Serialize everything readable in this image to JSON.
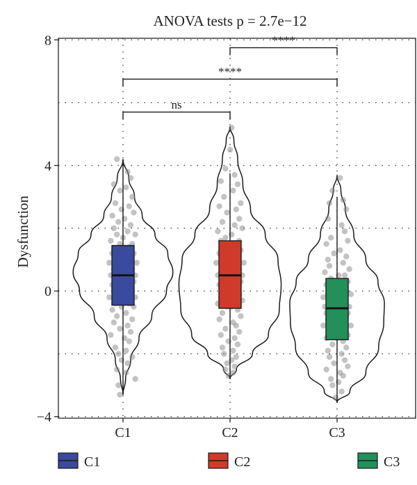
{
  "chart_data": {
    "type": "violin",
    "title": "ANOVA tests p = 2.7e−12",
    "xlabel": "",
    "ylabel": "Dysfunction",
    "categories": [
      "C1",
      "C2",
      "C3"
    ],
    "ylim": [
      -4.05,
      8.05
    ],
    "yticks": [
      -4,
      0,
      4,
      8
    ],
    "ytick_labels": [
      "−4",
      "0",
      "4",
      "8"
    ],
    "grid": "dotted",
    "legend_position": "bottom",
    "series": [
      {
        "name": "C1",
        "color": "#3A4A9E",
        "q1": -0.45,
        "median": 0.5,
        "q3": 1.45,
        "whisker_low": -3.3,
        "whisker_high": 4.2
      },
      {
        "name": "C2",
        "color": "#D03A2A",
        "q1": -0.55,
        "median": 0.5,
        "q3": 1.6,
        "whisker_low": -2.8,
        "whisker_high": 3.75
      },
      {
        "name": "C3",
        "color": "#23905A",
        "q1": -1.55,
        "median": -0.55,
        "q3": 0.4,
        "whisker_low": -3.5,
        "whisker_high": 3.0
      }
    ],
    "violins": [
      {
        "category": "C1",
        "density": [
          [
            -3.3,
            0
          ],
          [
            -2.8,
            0.04
          ],
          [
            -2.2,
            0.12
          ],
          [
            -1.5,
            0.25
          ],
          [
            -0.8,
            0.45
          ],
          [
            0,
            0.68
          ],
          [
            0.6,
            0.78
          ],
          [
            1.2,
            0.7
          ],
          [
            1.8,
            0.5
          ],
          [
            2.4,
            0.3
          ],
          [
            3.0,
            0.18
          ],
          [
            3.6,
            0.09
          ],
          [
            4.2,
            0
          ]
        ]
      },
      {
        "category": "C2",
        "density": [
          [
            -2.8,
            0
          ],
          [
            -2.5,
            0.1
          ],
          [
            -2.0,
            0.35
          ],
          [
            -1.4,
            0.6
          ],
          [
            -0.6,
            0.77
          ],
          [
            0.2,
            0.8
          ],
          [
            1.0,
            0.75
          ],
          [
            1.8,
            0.55
          ],
          [
            2.6,
            0.32
          ],
          [
            3.4,
            0.2
          ],
          [
            4.2,
            0.12
          ],
          [
            4.8,
            0.06
          ],
          [
            5.25,
            0
          ]
        ]
      },
      {
        "category": "C3",
        "density": [
          [
            -3.55,
            0
          ],
          [
            -3.2,
            0.2
          ],
          [
            -2.6,
            0.45
          ],
          [
            -1.8,
            0.65
          ],
          [
            -1.0,
            0.73
          ],
          [
            -0.4,
            0.74
          ],
          [
            0.3,
            0.64
          ],
          [
            1.0,
            0.45
          ],
          [
            1.8,
            0.26
          ],
          [
            2.6,
            0.13
          ],
          [
            3.2,
            0.06
          ],
          [
            3.7,
            0
          ]
        ]
      }
    ],
    "comparisons": [
      {
        "group1": "C1",
        "group2": "C2",
        "y": 5.7,
        "label": "ns"
      },
      {
        "group1": "C1",
        "group2": "C3",
        "y": 6.75,
        "label": "****"
      },
      {
        "group1": "C2",
        "group2": "C3",
        "y": 7.75,
        "label": "****"
      }
    ],
    "points": [
      {
        "category": "C1",
        "y": [
          4.2,
          3.8,
          3.6,
          3.4,
          3.3,
          3.2,
          3.0,
          2.8,
          2.7,
          2.6,
          2.5,
          2.4,
          2.3,
          2.2,
          2.1,
          2.0,
          1.9,
          1.8,
          1.8,
          1.7,
          1.6,
          1.5,
          1.5,
          1.4,
          1.3,
          1.2,
          1.2,
          1.1,
          1.0,
          1.0,
          0.9,
          0.9,
          0.8,
          0.8,
          0.7,
          0.7,
          0.6,
          0.6,
          0.5,
          0.5,
          0.5,
          0.4,
          0.4,
          0.3,
          0.3,
          0.2,
          0.2,
          0.1,
          0.1,
          0.0,
          0.0,
          -0.1,
          -0.1,
          -0.2,
          -0.2,
          -0.3,
          -0.3,
          -0.4,
          -0.4,
          -0.5,
          -0.5,
          -0.6,
          -0.7,
          -0.8,
          -0.9,
          -1.0,
          -1.1,
          -1.2,
          -1.3,
          -1.4,
          -1.5,
          -1.6,
          -1.8,
          -1.9,
          -2.0,
          -2.1,
          -2.2,
          -2.3,
          -2.5,
          -2.6,
          -2.8,
          -3.0,
          -3.3
        ],
        "dx": [
          -0.4,
          0.3,
          0.5,
          -0.6,
          0.2,
          -0.2,
          0.6,
          -0.5,
          0.4,
          -0.1,
          0.7,
          -0.7,
          0.1,
          -0.3,
          0.5,
          -0.6,
          0.3,
          0.8,
          -0.4,
          0.0,
          -0.8,
          0.6,
          -0.2,
          0.4,
          -0.5,
          0.7,
          -0.7,
          0.2,
          -0.3,
          0.5,
          0.9,
          -0.9,
          0.1,
          -0.4,
          0.6,
          -0.6,
          0.3,
          -0.1,
          0.8,
          -0.8,
          0.2,
          -0.5,
          0.4,
          0.7,
          -0.2,
          -0.7,
          0.5,
          0.0,
          -0.4,
          0.6,
          -0.6,
          0.3,
          -0.3,
          0.8,
          -0.9,
          0.1,
          0.5,
          -0.5,
          0.4,
          -0.1,
          0.7,
          -0.7,
          0.2,
          -0.4,
          0.6,
          -0.6,
          0.3,
          -0.2,
          0.5,
          -0.8,
          0.1,
          0.4,
          -0.5,
          0.2,
          -0.3,
          0.6,
          -0.1,
          0.3,
          -0.4,
          0.2,
          0.8,
          -0.3,
          -0.2
        ]
      },
      {
        "category": "C2",
        "y": [
          5.2,
          4.5,
          3.9,
          3.7,
          3.5,
          3.4,
          3.2,
          3.0,
          2.8,
          2.7,
          2.6,
          2.5,
          2.3,
          2.2,
          2.1,
          2.0,
          1.9,
          1.8,
          1.7,
          1.6,
          1.6,
          1.5,
          1.4,
          1.3,
          1.2,
          1.2,
          1.1,
          1.0,
          0.9,
          0.9,
          0.8,
          0.8,
          0.7,
          0.6,
          0.6,
          0.5,
          0.5,
          0.4,
          0.4,
          0.3,
          0.3,
          0.2,
          0.2,
          0.1,
          0.0,
          0.0,
          -0.1,
          -0.2,
          -0.2,
          -0.3,
          -0.4,
          -0.5,
          -0.5,
          -0.6,
          -0.7,
          -0.8,
          -0.9,
          -1.0,
          -1.1,
          -1.2,
          -1.3,
          -1.4,
          -1.5,
          -1.6,
          -1.7,
          -1.8,
          -1.9,
          -2.0,
          -2.1,
          -2.2,
          -2.3,
          -2.4,
          -2.5,
          -2.6,
          -2.7
        ],
        "dx": [
          0.1,
          0.0,
          -0.3,
          0.3,
          -0.6,
          0.5,
          0.2,
          -0.4,
          0.7,
          -0.7,
          0.4,
          -0.2,
          0.6,
          -0.5,
          0.3,
          0.8,
          -0.8,
          0.1,
          -0.3,
          0.6,
          -0.6,
          0.4,
          -0.1,
          0.7,
          -0.7,
          0.2,
          0.5,
          -0.4,
          0.9,
          -0.9,
          0.3,
          -0.2,
          0.6,
          -0.6,
          0.1,
          0.8,
          -0.8,
          0.4,
          -0.5,
          0.2,
          0.7,
          -0.3,
          -0.7,
          0.5,
          0.0,
          -0.4,
          0.6,
          -0.6,
          0.3,
          0.8,
          -0.8,
          0.1,
          -0.2,
          0.5,
          -0.5,
          0.7,
          -0.7,
          0.2,
          0.4,
          -0.3,
          0.6,
          -0.6,
          0.3,
          -0.1,
          0.5,
          -0.5,
          0.2,
          -0.4,
          0.4,
          0.1,
          -0.2,
          0.3,
          -0.3,
          0.2,
          -0.1
        ]
      },
      {
        "category": "C3",
        "y": [
          3.6,
          3.2,
          2.9,
          2.8,
          2.6,
          2.3,
          2.1,
          1.9,
          1.7,
          1.6,
          1.5,
          1.3,
          1.2,
          1.1,
          1.0,
          0.9,
          0.8,
          0.7,
          0.6,
          0.5,
          0.5,
          0.4,
          0.3,
          0.2,
          0.2,
          0.1,
          0.0,
          -0.1,
          -0.1,
          -0.2,
          -0.3,
          -0.3,
          -0.4,
          -0.4,
          -0.5,
          -0.5,
          -0.6,
          -0.6,
          -0.7,
          -0.7,
          -0.8,
          -0.8,
          -0.9,
          -0.9,
          -1.0,
          -1.1,
          -1.1,
          -1.2,
          -1.3,
          -1.3,
          -1.4,
          -1.5,
          -1.5,
          -1.6,
          -1.7,
          -1.8,
          -1.9,
          -2.0,
          -2.1,
          -2.2,
          -2.3,
          -2.4,
          -2.5,
          -2.6,
          -2.7,
          -2.8,
          -2.9,
          -3.0,
          -3.2,
          -3.4
        ],
        "dx": [
          0.2,
          -0.3,
          0.4,
          -0.5,
          0.6,
          -0.6,
          0.3,
          0.5,
          -0.4,
          0.7,
          -0.7,
          0.2,
          -0.2,
          0.6,
          -0.6,
          0.4,
          -0.5,
          0.8,
          -0.8,
          0.1,
          0.5,
          -0.4,
          0.7,
          -0.7,
          0.3,
          -0.1,
          0.6,
          -0.6,
          0.9,
          -0.9,
          0.2,
          -0.3,
          0.5,
          -0.5,
          0.8,
          -0.8,
          0.4,
          -0.2,
          0.7,
          -0.7,
          0.1,
          0.6,
          -0.6,
          0.3,
          -0.4,
          0.9,
          -0.9,
          0.5,
          -0.5,
          0.2,
          0.7,
          -0.7,
          0.0,
          0.4,
          -0.3,
          0.6,
          -0.6,
          0.3,
          -0.5,
          0.5,
          -0.2,
          0.7,
          -0.7,
          0.2,
          0.4,
          -0.4,
          0.1,
          -0.3,
          0.3,
          -0.1
        ]
      }
    ]
  }
}
